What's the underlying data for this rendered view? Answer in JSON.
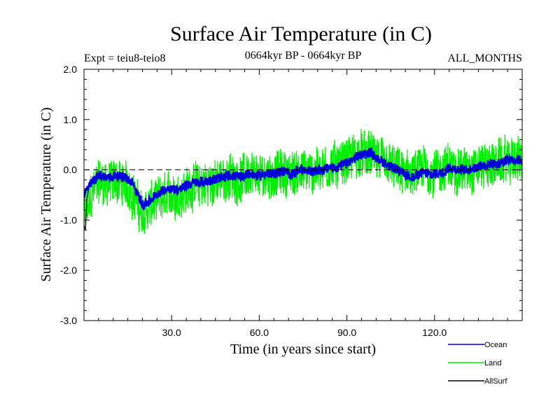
{
  "chart_data": {
    "type": "line",
    "title": "Surface Air Temperature (in C)",
    "subtitle_left": "Expt = teiu8-teio8",
    "subtitle_center": "0664kyr BP - 0664kyr BP",
    "subtitle_right": "ALL_MONTHS",
    "xlabel": "Time (in years since start)",
    "ylabel": "Surface Air Temperature (in C)",
    "xlim": [
      0,
      150
    ],
    "ylim": [
      -3.0,
      2.0
    ],
    "x_ticks": [
      30,
      60,
      90,
      120
    ],
    "x_tick_labels": [
      "30.0",
      "60.0",
      "90.0",
      "120.0"
    ],
    "y_ticks": [
      2,
      1,
      0,
      -1,
      -2,
      -3
    ],
    "y_tick_labels": [
      "2.0",
      "1.0",
      "0.0",
      "-1.0",
      "-2.0",
      "-3.0"
    ],
    "zero_line": "dashed",
    "legend_placement": "bottom-right",
    "series": [
      {
        "name": "Land",
        "color": "#00ee00",
        "x": [
          0,
          2,
          5,
          8,
          11,
          14,
          17,
          20,
          23,
          26,
          29,
          32,
          35,
          38,
          41,
          44,
          47,
          50,
          53,
          56,
          59,
          62,
          65,
          68,
          71,
          74,
          77,
          80,
          83,
          86,
          89,
          92,
          95,
          98,
          101,
          104,
          107,
          110,
          113,
          116,
          119,
          122,
          125,
          128,
          131,
          134,
          137,
          140,
          143,
          146,
          150
        ],
        "values": [
          -1.0,
          -0.6,
          -0.2,
          -0.3,
          -0.2,
          -0.3,
          -0.5,
          -0.9,
          -0.7,
          -0.6,
          -0.5,
          -0.5,
          -0.4,
          -0.3,
          -0.3,
          -0.25,
          -0.2,
          -0.15,
          -0.2,
          -0.1,
          -0.15,
          -0.1,
          -0.1,
          -0.05,
          -0.1,
          0.0,
          -0.05,
          0.0,
          0.05,
          0.1,
          0.15,
          0.25,
          0.3,
          0.3,
          0.2,
          0.1,
          0.0,
          -0.1,
          -0.1,
          0.0,
          -0.05,
          0.0,
          0.05,
          0.0,
          0.0,
          0.05,
          0.1,
          0.1,
          0.15,
          0.2,
          0.2
        ]
      },
      {
        "name": "Ocean",
        "color": "#0000dd",
        "x": [
          0,
          2,
          5,
          8,
          11,
          14,
          17,
          20,
          23,
          26,
          29,
          32,
          35,
          38,
          41,
          44,
          47,
          50,
          53,
          56,
          59,
          62,
          65,
          68,
          71,
          74,
          77,
          80,
          83,
          86,
          89,
          92,
          95,
          98,
          101,
          104,
          107,
          110,
          113,
          116,
          119,
          122,
          125,
          128,
          131,
          134,
          137,
          140,
          143,
          146,
          150
        ],
        "values": [
          -0.5,
          -0.3,
          -0.1,
          -0.15,
          -0.1,
          -0.15,
          -0.3,
          -0.7,
          -0.6,
          -0.45,
          -0.35,
          -0.4,
          -0.3,
          -0.25,
          -0.25,
          -0.2,
          -0.15,
          -0.1,
          -0.15,
          -0.08,
          -0.12,
          -0.08,
          -0.08,
          -0.03,
          -0.08,
          0.0,
          -0.03,
          0.0,
          0.03,
          0.05,
          0.1,
          0.2,
          0.3,
          0.35,
          0.2,
          0.1,
          0.0,
          -0.1,
          -0.15,
          -0.05,
          -0.1,
          -0.05,
          0.05,
          0.0,
          0.0,
          0.05,
          0.1,
          0.1,
          0.15,
          0.2,
          0.2
        ]
      },
      {
        "name": "AllSurf",
        "color": "#000000",
        "x": [
          0,
          0.5,
          1,
          1.5
        ],
        "values": [
          -1.1,
          -1.2,
          -0.6,
          -0.4
        ]
      }
    ]
  },
  "legend": {
    "items": [
      {
        "label": "Ocean",
        "color": "#0000dd"
      },
      {
        "label": "Land",
        "color": "#00ee00"
      },
      {
        "label": "AllSurf",
        "color": "#000000"
      }
    ]
  },
  "noise": {
    "Land": 0.55,
    "Ocean": 0.12
  }
}
